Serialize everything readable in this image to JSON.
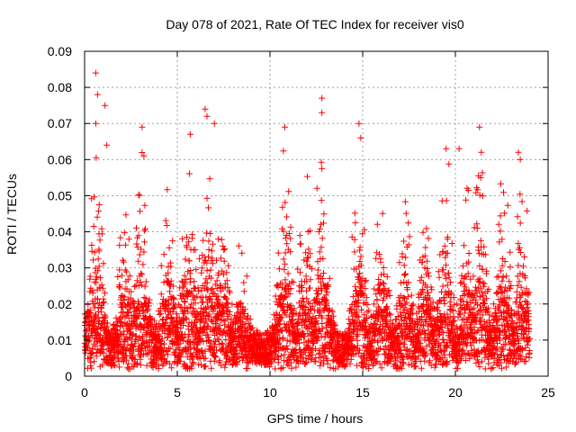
{
  "chart_data": {
    "type": "scatter",
    "title": "Day 078 of 2021, Rate Of TEC Index for receiver vis0",
    "xlabel": "GPS time / hours",
    "ylabel": "ROTI / TECUs",
    "xlim": [
      0,
      25
    ],
    "ylim": [
      0,
      0.09
    ],
    "x_ticks": [
      0,
      5,
      10,
      15,
      20,
      25
    ],
    "x_tick_labels": [
      "0",
      "5",
      "10",
      "15",
      "20",
      "25"
    ],
    "y_ticks": [
      0,
      0.01,
      0.02,
      0.03,
      0.04,
      0.05,
      0.06,
      0.07,
      0.08,
      0.09
    ],
    "y_tick_labels": [
      "0",
      "0.01",
      "0.02",
      "0.03",
      "0.04",
      "0.05",
      "0.06",
      "0.07",
      "0.08",
      "0.09"
    ],
    "grid": true,
    "marker": "+",
    "color": "#ff0000",
    "series": [
      {
        "name": "ROTI",
        "note": "Dense scatter of ~30s samples over 0–24 h; most values 0.003–0.02, frequent spikes up to ~0.084",
        "x_range": [
          0,
          24
        ],
        "baseline_range": [
          0.003,
          0.012
        ],
        "peaks": [
          {
            "x": 0.6,
            "y": 0.084
          },
          {
            "x": 0.7,
            "y": 0.078
          },
          {
            "x": 0.6,
            "y": 0.07
          },
          {
            "x": 1.1,
            "y": 0.075
          },
          {
            "x": 1.2,
            "y": 0.064
          },
          {
            "x": 3.1,
            "y": 0.069
          },
          {
            "x": 3.2,
            "y": 0.061
          },
          {
            "x": 5.7,
            "y": 0.067
          },
          {
            "x": 6.5,
            "y": 0.074
          },
          {
            "x": 6.6,
            "y": 0.072
          },
          {
            "x": 7.0,
            "y": 0.07
          },
          {
            "x": 10.8,
            "y": 0.069
          },
          {
            "x": 12.8,
            "y": 0.077
          },
          {
            "x": 12.8,
            "y": 0.073
          },
          {
            "x": 14.8,
            "y": 0.07
          },
          {
            "x": 14.9,
            "y": 0.066
          },
          {
            "x": 19.5,
            "y": 0.063
          },
          {
            "x": 20.2,
            "y": 0.063
          },
          {
            "x": 21.3,
            "y": 0.069
          },
          {
            "x": 21.4,
            "y": 0.062
          },
          {
            "x": 23.4,
            "y": 0.062
          },
          {
            "x": 23.5,
            "y": 0.06
          }
        ],
        "activity_windows": [
          {
            "center": 0.6,
            "amplitude": 0.06
          },
          {
            "center": 2.2,
            "amplitude": 0.05
          },
          {
            "center": 3.1,
            "amplitude": 0.055
          },
          {
            "center": 4.5,
            "amplitude": 0.052
          },
          {
            "center": 5.6,
            "amplitude": 0.058
          },
          {
            "center": 6.6,
            "amplitude": 0.06
          },
          {
            "center": 7.4,
            "amplitude": 0.048
          },
          {
            "center": 8.5,
            "amplitude": 0.03
          },
          {
            "center": 10.8,
            "amplitude": 0.06
          },
          {
            "center": 11.9,
            "amplitude": 0.055
          },
          {
            "center": 12.8,
            "amplitude": 0.065
          },
          {
            "center": 14.8,
            "amplitude": 0.06
          },
          {
            "center": 16.0,
            "amplitude": 0.05
          },
          {
            "center": 17.3,
            "amplitude": 0.045
          },
          {
            "center": 18.4,
            "amplitude": 0.045
          },
          {
            "center": 19.5,
            "amplitude": 0.055
          },
          {
            "center": 20.6,
            "amplitude": 0.05
          },
          {
            "center": 21.3,
            "amplitude": 0.06
          },
          {
            "center": 22.6,
            "amplitude": 0.055
          },
          {
            "center": 23.6,
            "amplitude": 0.055
          }
        ]
      }
    ]
  }
}
